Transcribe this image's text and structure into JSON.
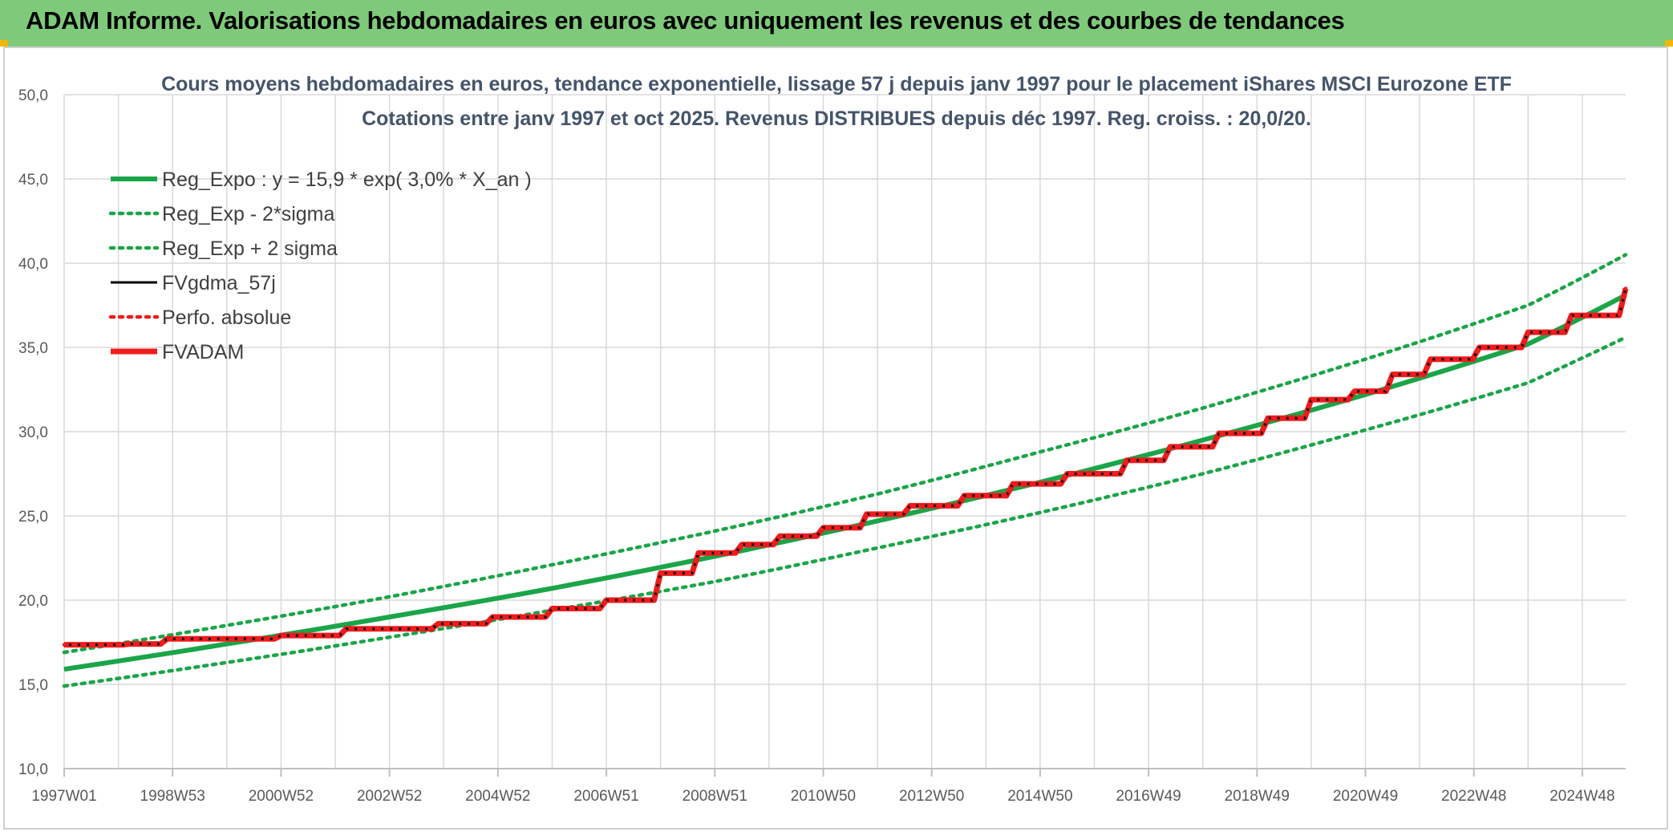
{
  "banner": {
    "title": "ADAM Informe. Valorisations hebdomadaires en euros avec uniquement les revenus et des courbes de tendances"
  },
  "colors": {
    "banner_bg": "#7fca7a",
    "reg_green": "#1aa548",
    "fv_black": "#000000",
    "adam_red": "#ee1c1c",
    "grid": "#d9d9d9"
  },
  "chart_data": {
    "type": "line",
    "title_lines": [
      "Cours moyens hebdomadaires en euros, tendance exponentielle, lissage 57 j depuis janv 1997 pour le placement iShares MSCI Eurozone ETF",
      "Cotations entre janv 1997 et oct 2025. Revenus DISTRIBUES depuis déc 1997. Reg. croiss. : 20,0/20."
    ],
    "xlabel": "",
    "ylabel": "",
    "ylim": [
      10,
      50
    ],
    "xlim": [
      1997.0,
      2025.8
    ],
    "grid": true,
    "legend_position": "top-left",
    "y_ticks": [
      "10,0",
      "15,0",
      "20,0",
      "25,0",
      "30,0",
      "35,0",
      "40,0",
      "45,0",
      "50,0"
    ],
    "x_ticks": [
      {
        "label": "1997W01",
        "year": 1997.0
      },
      {
        "label": "1998W53",
        "year": 1999.0
      },
      {
        "label": "2000W52",
        "year": 2001.0
      },
      {
        "label": "2002W52",
        "year": 2003.0
      },
      {
        "label": "2004W52",
        "year": 2005.0
      },
      {
        "label": "2006W51",
        "year": 2007.0
      },
      {
        "label": "2008W51",
        "year": 2009.0
      },
      {
        "label": "2010W50",
        "year": 2011.0
      },
      {
        "label": "2012W50",
        "year": 2013.0
      },
      {
        "label": "2014W50",
        "year": 2015.0
      },
      {
        "label": "2016W49",
        "year": 2017.0
      },
      {
        "label": "2018W49",
        "year": 2019.0
      },
      {
        "label": "2020W49",
        "year": 2021.0
      },
      {
        "label": "2022W48",
        "year": 2023.0
      },
      {
        "label": "2024W48",
        "year": 2025.0
      }
    ],
    "series": [
      {
        "name": "Reg_Expo : y = 15,9 * exp( 3,0% *  X_an )",
        "style": "solid-thick",
        "color": "#1aa548",
        "x": [
          1997.0,
          2000.0,
          2003.0,
          2006.0,
          2009.0,
          2012.0,
          2015.0,
          2018.0,
          2021.0,
          2024.0,
          2025.8
        ],
        "values": [
          15.9,
          17.4,
          19.0,
          20.7,
          22.6,
          24.7,
          27.0,
          29.5,
          32.2,
          35.2,
          38.1
        ]
      },
      {
        "name": "Reg_Exp - 2*sigma",
        "style": "dotted",
        "color": "#1aa548",
        "x": [
          1997.0,
          2000.0,
          2003.0,
          2006.0,
          2009.0,
          2012.0,
          2015.0,
          2018.0,
          2021.0,
          2024.0,
          2025.8
        ],
        "values": [
          14.9,
          16.3,
          17.8,
          19.4,
          21.1,
          23.1,
          25.2,
          27.5,
          30.1,
          32.9,
          35.6
        ]
      },
      {
        "name": "Reg_Exp + 2 sigma",
        "style": "dotted",
        "color": "#1aa548",
        "x": [
          1997.0,
          2000.0,
          2003.0,
          2006.0,
          2009.0,
          2012.0,
          2015.0,
          2018.0,
          2021.0,
          2024.0,
          2025.8
        ],
        "values": [
          16.9,
          18.5,
          20.2,
          22.1,
          24.1,
          26.3,
          28.8,
          31.4,
          34.3,
          37.5,
          40.5
        ]
      },
      {
        "name": "FVgdma_57j",
        "style": "solid",
        "color": "#000000",
        "x": [
          1997.0,
          1998.2,
          1998.9,
          2001.0,
          2002.2,
          2003.9,
          2004.9,
          2006.0,
          2007.0,
          2008.0,
          2008.7,
          2009.5,
          2010.2,
          2011.0,
          2011.8,
          2012.6,
          2013.6,
          2014.5,
          2015.5,
          2016.6,
          2017.4,
          2018.3,
          2019.2,
          2020.0,
          2020.8,
          2021.5,
          2022.2,
          2023.1,
          2024.0,
          2024.8,
          2025.8
        ],
        "values": [
          17.35,
          17.4,
          17.7,
          17.9,
          18.3,
          18.6,
          19.0,
          19.5,
          20.0,
          21.6,
          22.8,
          23.3,
          23.8,
          24.3,
          25.1,
          25.6,
          26.2,
          26.9,
          27.5,
          28.3,
          29.1,
          29.9,
          30.8,
          31.9,
          32.4,
          33.4,
          34.3,
          35.0,
          35.9,
          36.9,
          38.5
        ]
      },
      {
        "name": "Perfo. absolue",
        "style": "dotted",
        "color": "#ee1c1c",
        "x": [
          1997.0,
          1998.2,
          1998.9,
          2001.0,
          2002.2,
          2003.9,
          2004.9,
          2006.0,
          2007.0,
          2008.0,
          2008.7,
          2009.5,
          2010.2,
          2011.0,
          2011.8,
          2012.6,
          2013.6,
          2014.5,
          2015.5,
          2016.6,
          2017.4,
          2018.3,
          2019.2,
          2020.0,
          2020.8,
          2021.5,
          2022.2,
          2023.1,
          2024.0,
          2024.8,
          2025.8
        ],
        "values": [
          17.35,
          17.4,
          17.7,
          17.9,
          18.3,
          18.6,
          19.0,
          19.5,
          20.0,
          21.6,
          22.8,
          23.3,
          23.8,
          24.3,
          25.1,
          25.6,
          26.2,
          26.9,
          27.5,
          28.3,
          29.1,
          29.9,
          30.8,
          31.9,
          32.4,
          33.4,
          34.3,
          35.0,
          35.9,
          36.9,
          38.5
        ]
      },
      {
        "name": "FVADAM",
        "style": "step-thick",
        "color": "#ee1c1c",
        "x": [
          1997.0,
          1998.2,
          1998.9,
          2001.0,
          2002.2,
          2003.9,
          2004.9,
          2006.0,
          2007.0,
          2008.0,
          2008.7,
          2009.5,
          2010.2,
          2011.0,
          2011.8,
          2012.6,
          2013.6,
          2014.5,
          2015.5,
          2016.6,
          2017.4,
          2018.3,
          2019.2,
          2020.0,
          2020.8,
          2021.5,
          2022.2,
          2023.1,
          2024.0,
          2024.8,
          2025.8
        ],
        "values": [
          17.35,
          17.4,
          17.7,
          17.9,
          18.3,
          18.6,
          19.0,
          19.5,
          20.0,
          21.6,
          22.8,
          23.3,
          23.8,
          24.3,
          25.1,
          25.6,
          26.2,
          26.9,
          27.5,
          28.3,
          29.1,
          29.9,
          30.8,
          31.9,
          32.4,
          33.4,
          34.3,
          35.0,
          35.9,
          36.9,
          38.5
        ]
      }
    ]
  }
}
